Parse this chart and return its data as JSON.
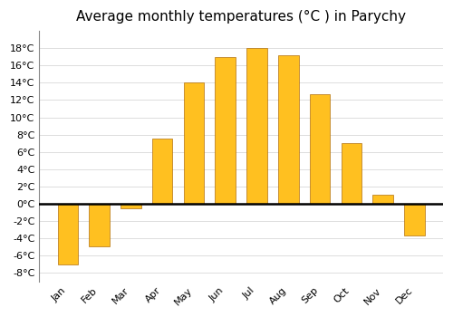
{
  "title": "Average monthly temperatures (°C ) in Parychy",
  "months": [
    "Jan",
    "Feb",
    "Mar",
    "Apr",
    "May",
    "Jun",
    "Jul",
    "Aug",
    "Sep",
    "Oct",
    "Nov",
    "Dec"
  ],
  "values": [
    -7.0,
    -5.0,
    -0.5,
    7.5,
    14.0,
    17.0,
    18.0,
    17.2,
    12.7,
    7.0,
    1.0,
    -3.7
  ],
  "bar_color": "#FFC020",
  "bar_edge_color": "#B07010",
  "background_color": "#FFFFFF",
  "grid_color": "#DDDDDD",
  "ylim": [
    -9,
    20
  ],
  "yticks": [
    -8,
    -6,
    -4,
    -2,
    0,
    2,
    4,
    6,
    8,
    10,
    12,
    14,
    16,
    18
  ],
  "tick_label_suffix": "°C",
  "title_fontsize": 11,
  "tick_fontsize": 8,
  "xlabel_rotation": 45
}
